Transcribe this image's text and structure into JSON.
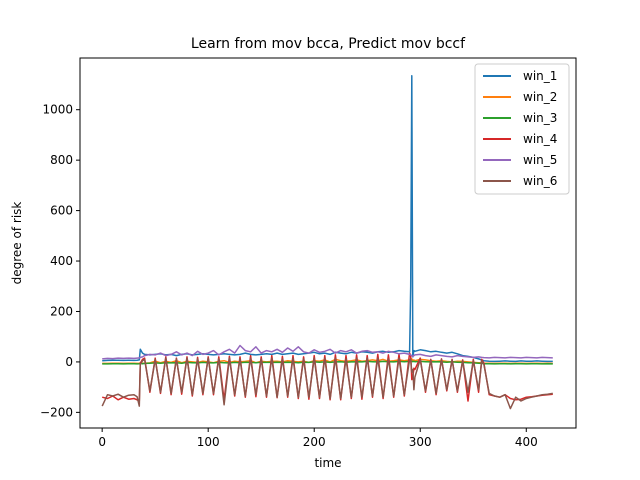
{
  "chart_data": {
    "type": "line",
    "title": "Learn from mov bcca, Predict mov bccf",
    "xlabel": "time",
    "ylabel": "degree of risk",
    "xlim": [
      -20.9,
      446.9
    ],
    "ylim": [
      -262,
      1205
    ],
    "xticks": [
      0,
      100,
      200,
      300,
      400
    ],
    "yticks": [
      -200,
      0,
      200,
      400,
      600,
      800,
      1000
    ],
    "grid": false,
    "legend_position": "top-right",
    "x": [
      0,
      5,
      10,
      15,
      20,
      25,
      30,
      33,
      35,
      36,
      38,
      40,
      45,
      50,
      55,
      60,
      65,
      70,
      75,
      80,
      85,
      90,
      95,
      100,
      105,
      110,
      115,
      120,
      125,
      130,
      135,
      140,
      145,
      150,
      155,
      160,
      165,
      170,
      175,
      180,
      185,
      190,
      195,
      200,
      205,
      210,
      215,
      220,
      225,
      230,
      235,
      240,
      245,
      250,
      255,
      260,
      265,
      270,
      275,
      280,
      285,
      290,
      291,
      292,
      293,
      294,
      295,
      300,
      305,
      310,
      315,
      320,
      325,
      330,
      335,
      340,
      345,
      350,
      355,
      358,
      360,
      365,
      370,
      375,
      380,
      385,
      390,
      395,
      400,
      405,
      410,
      415,
      420,
      425
    ],
    "series": [
      {
        "name": "win_1",
        "color": "#1f77b4",
        "values": [
          5,
          6,
          7,
          7,
          6,
          7,
          6,
          7,
          8,
          50,
          35,
          30,
          28,
          30,
          32,
          28,
          30,
          25,
          30,
          32,
          28,
          30,
          32,
          30,
          28,
          30,
          32,
          30,
          28,
          30,
          35,
          30,
          28,
          30,
          32,
          30,
          35,
          30,
          32,
          35,
          30,
          32,
          35,
          38,
          32,
          35,
          30,
          38,
          35,
          32,
          38,
          35,
          40,
          38,
          35,
          40,
          42,
          38,
          40,
          45,
          42,
          40,
          300,
          1135,
          20,
          45,
          42,
          48,
          45,
          40,
          42,
          38,
          35,
          38,
          32,
          25,
          22,
          18,
          12,
          8,
          5,
          3,
          2,
          3,
          4,
          3,
          2,
          4,
          3,
          3,
          4,
          3,
          2,
          2
        ]
      },
      {
        "name": "win_2",
        "color": "#ff7f0e",
        "values": [
          -6,
          -6,
          -5,
          -5,
          -6,
          -5,
          -5,
          -6,
          -5,
          -4,
          -5,
          -5,
          -4,
          3,
          -3,
          2,
          -2,
          5,
          -3,
          2,
          0,
          -2,
          3,
          0,
          -3,
          2,
          5,
          -2,
          3,
          0,
          2,
          5,
          -3,
          3,
          0,
          2,
          3,
          0,
          5,
          2,
          0,
          3,
          -2,
          5,
          3,
          8,
          0,
          10,
          5,
          3,
          5,
          8,
          3,
          5,
          8,
          5,
          10,
          3,
          5,
          8,
          5,
          8,
          10,
          12,
          5,
          8,
          5,
          10,
          8,
          5,
          3,
          5,
          2,
          0,
          3,
          2,
          0,
          -2,
          -3,
          -4,
          -5,
          -5,
          -6,
          -5,
          -5,
          -6,
          -5,
          -5,
          -6,
          -5,
          -5,
          -6,
          -5,
          -6
        ]
      },
      {
        "name": "win_3",
        "color": "#2ca02c",
        "values": [
          -8,
          -8,
          -7,
          -7,
          -8,
          -7,
          -7,
          -8,
          -7,
          -6,
          -7,
          -6,
          -5,
          -4,
          -5,
          -3,
          -4,
          -3,
          -5,
          -2,
          -3,
          -4,
          -2,
          -3,
          -4,
          -2,
          -3,
          -4,
          -2,
          -3,
          -1,
          -2,
          -3,
          -1,
          -2,
          -2,
          -1,
          -2,
          -1,
          -2,
          -3,
          -1,
          -2,
          0,
          -1,
          0,
          -2,
          0,
          1,
          -1,
          0,
          1,
          0,
          2,
          1,
          0,
          2,
          1,
          0,
          2,
          1,
          2,
          2,
          3,
          1,
          2,
          1,
          2,
          1,
          0,
          1,
          0,
          -1,
          0,
          -1,
          -2,
          -3,
          -4,
          -5,
          -6,
          -7,
          -7,
          -8,
          -7,
          -7,
          -8,
          -7,
          -7,
          -8,
          -7,
          -7,
          -8,
          -7,
          -8
        ]
      },
      {
        "name": "win_4",
        "color": "#d62728",
        "values": [
          -140,
          -145,
          -135,
          -150,
          -140,
          -148,
          -145,
          -150,
          -155,
          -5,
          10,
          15,
          -120,
          15,
          -125,
          20,
          -130,
          15,
          -128,
          20,
          -135,
          18,
          -130,
          20,
          -130,
          20,
          -150,
          22,
          -135,
          20,
          -140,
          25,
          -138,
          20,
          -140,
          25,
          -142,
          22,
          -140,
          25,
          -145,
          20,
          -148,
          25,
          -145,
          25,
          -150,
          28,
          -150,
          25,
          -145,
          28,
          -148,
          25,
          -140,
          30,
          -145,
          28,
          -140,
          30,
          -135,
          35,
          25,
          -70,
          -60,
          -25,
          -30,
          15,
          -120,
          10,
          -130,
          12,
          -115,
          10,
          -120,
          8,
          -155,
          10,
          -120,
          10,
          -5,
          -130,
          -135,
          -140,
          -130,
          -145,
          -150,
          -148,
          -140,
          -138,
          -135,
          -132,
          -130,
          -128
        ]
      },
      {
        "name": "win_5",
        "color": "#9467bd",
        "values": [
          12,
          14,
          13,
          15,
          14,
          15,
          14,
          15,
          16,
          18,
          20,
          25,
          30,
          28,
          35,
          25,
          30,
          40,
          28,
          35,
          25,
          42,
          30,
          35,
          45,
          28,
          40,
          50,
          35,
          65,
          45,
          40,
          60,
          35,
          45,
          40,
          50,
          38,
          55,
          42,
          60,
          40,
          35,
          48,
          38,
          42,
          50,
          35,
          45,
          40,
          48,
          35,
          42,
          45,
          38,
          40,
          35,
          42,
          38,
          32,
          35,
          30,
          28,
          25,
          22,
          25,
          28,
          30,
          25,
          22,
          28,
          25,
          22,
          20,
          25,
          22,
          20,
          18,
          20,
          18,
          17,
          16,
          18,
          17,
          16,
          18,
          17,
          16,
          18,
          17,
          16,
          18,
          17,
          16
        ]
      },
      {
        "name": "win_6",
        "color": "#8c564b",
        "values": [
          -175,
          -130,
          -135,
          -128,
          -140,
          -132,
          -130,
          -138,
          -175,
          -10,
          5,
          10,
          -115,
          10,
          -120,
          15,
          -125,
          12,
          -120,
          15,
          -130,
          12,
          -125,
          15,
          -125,
          12,
          -170,
          15,
          -130,
          12,
          -135,
          15,
          -130,
          12,
          -135,
          15,
          -140,
          12,
          -135,
          15,
          -140,
          12,
          -140,
          15,
          -140,
          15,
          -145,
          15,
          -145,
          12,
          -140,
          15,
          -140,
          15,
          -135,
          15,
          -140,
          12,
          -135,
          15,
          -130,
          10,
          10,
          -40,
          -30,
          -110,
          -60,
          10,
          -115,
          8,
          -125,
          10,
          -110,
          8,
          -115,
          5,
          -120,
          5,
          -110,
          5,
          -10,
          -125,
          -135,
          -140,
          -130,
          -185,
          -140,
          -155,
          -145,
          -140,
          -135,
          -130,
          -128,
          -125
        ]
      }
    ]
  }
}
